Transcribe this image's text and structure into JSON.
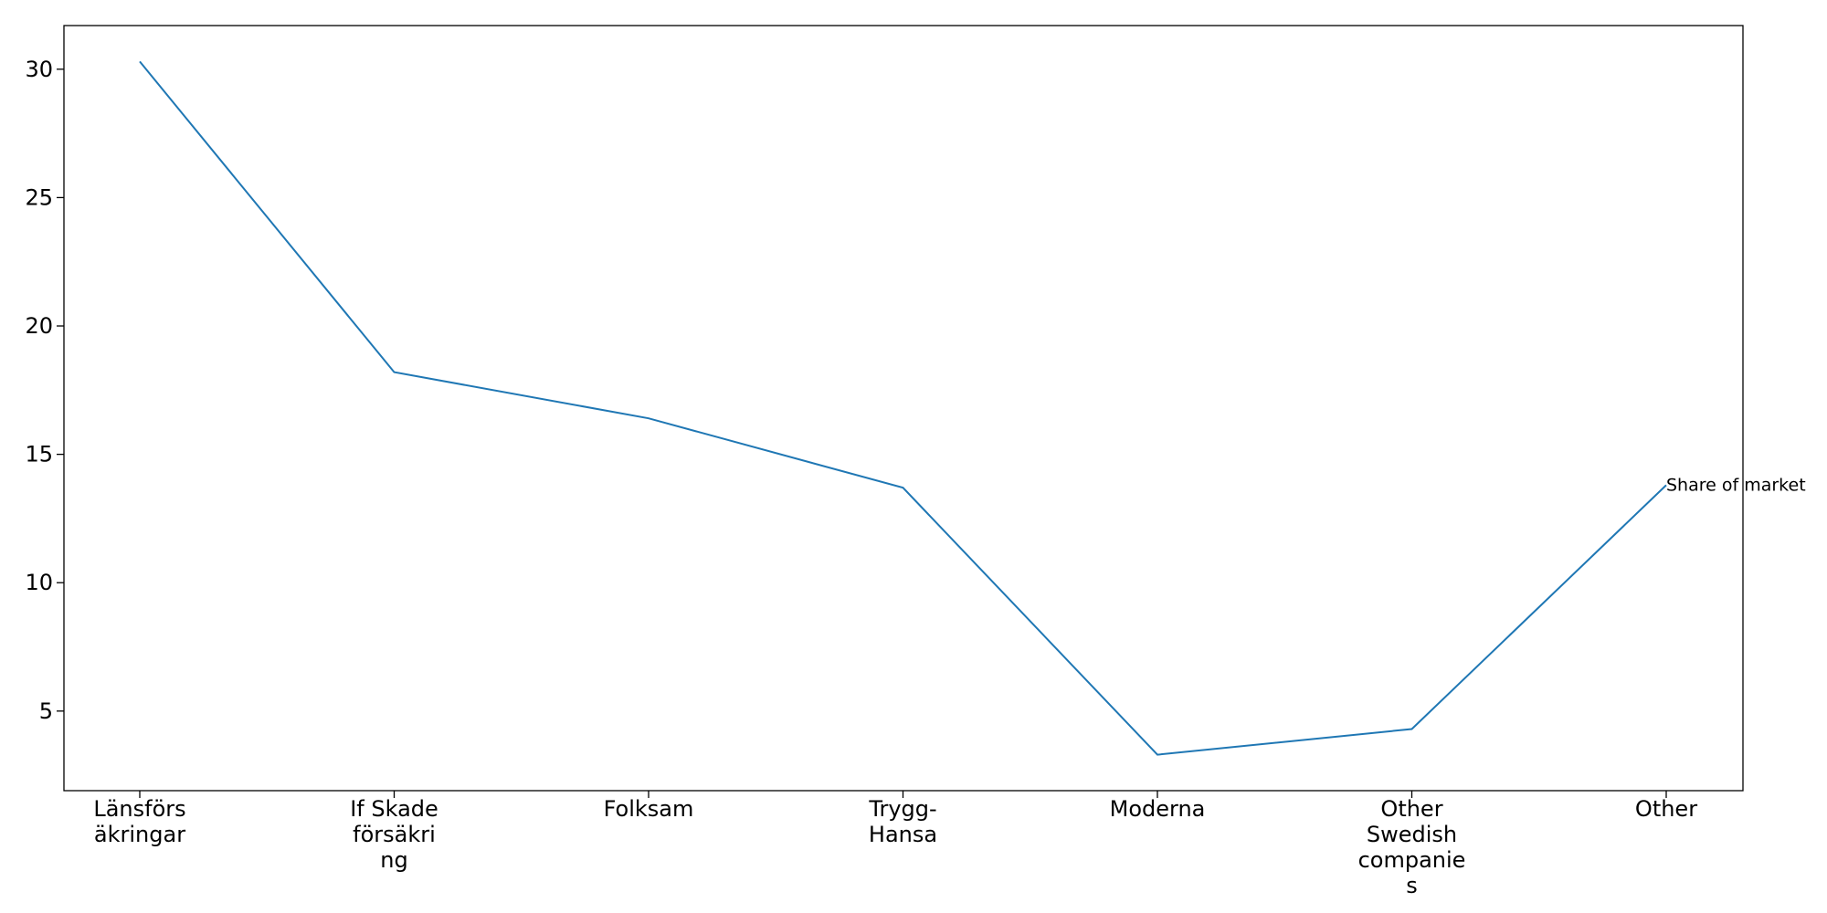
{
  "chart_data": {
    "type": "line",
    "title": "",
    "xlabel": "",
    "ylabel": "",
    "categories": [
      [
        "Länsförs",
        "äkringar"
      ],
      [
        "If Skade",
        "försäkri",
        "ng"
      ],
      [
        "Folksam"
      ],
      [
        "Trygg-",
        "Hansa"
      ],
      [
        "Moderna"
      ],
      [
        "Other",
        "Swedish",
        "companie",
        "s"
      ],
      [
        "Other"
      ]
    ],
    "series": [
      {
        "name": "Share of market",
        "values": [
          30.3,
          18.2,
          16.4,
          13.7,
          3.3,
          4.3,
          13.8
        ],
        "color": "#1f77b4"
      }
    ],
    "yticks": [
      5,
      10,
      15,
      20,
      25,
      30
    ],
    "ylim": [
      1.9,
      31.7
    ],
    "grid": false,
    "legend": "none"
  }
}
